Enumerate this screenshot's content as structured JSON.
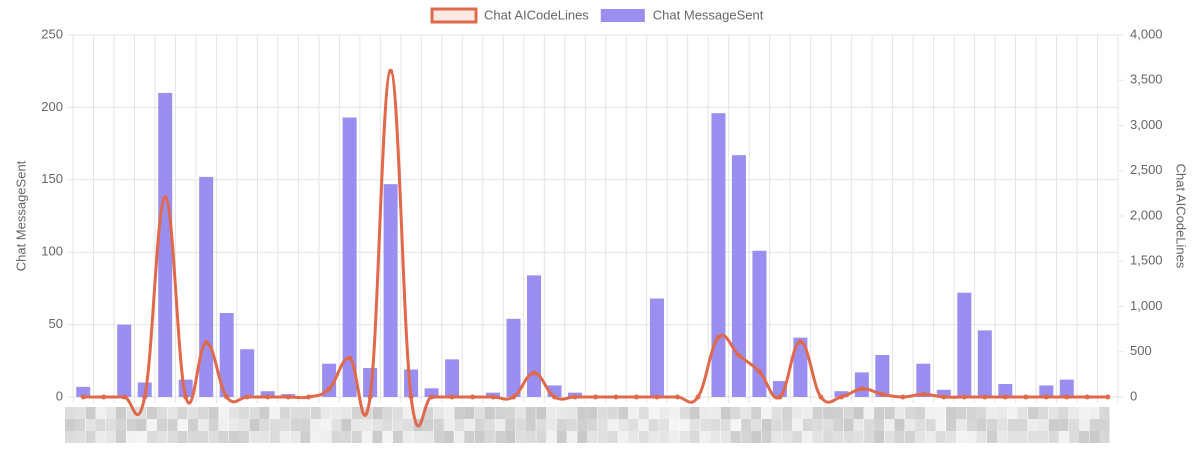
{
  "chart_data": {
    "type": "bar",
    "categories": [
      null,
      null,
      null,
      null,
      null,
      null,
      null,
      null,
      null,
      null,
      null,
      null,
      null,
      null,
      null,
      null,
      null,
      null,
      null,
      null,
      null,
      null,
      null,
      null,
      null,
      null,
      null,
      null,
      null,
      null,
      null,
      null,
      null,
      null,
      null,
      null,
      null,
      null,
      null,
      null,
      null,
      null,
      null,
      null,
      null,
      null,
      null,
      null,
      null,
      null,
      null
    ],
    "series": [
      {
        "name": "Chat AICodeLines",
        "type": "line",
        "axis": "y2",
        "color": "#e0694b",
        "values": [
          0,
          0,
          0,
          0,
          2200,
          0,
          600,
          0,
          0,
          0,
          0,
          0,
          90,
          430,
          0,
          3600,
          0,
          0,
          0,
          0,
          0,
          0,
          265,
          0,
          0,
          0,
          0,
          0,
          0,
          0,
          0,
          660,
          460,
          280,
          0,
          610,
          0,
          0,
          90,
          30,
          0,
          30,
          0,
          0,
          0,
          0,
          0,
          0,
          0,
          0,
          0
        ]
      },
      {
        "name": "Chat MessageSent",
        "type": "bar",
        "axis": "y",
        "color": "#9a8ef0",
        "values": [
          7,
          0,
          50,
          10,
          210,
          12,
          152,
          58,
          33,
          4,
          2,
          0,
          23,
          193,
          20,
          147,
          19,
          6,
          26,
          0,
          3,
          54,
          84,
          8,
          3,
          0,
          0,
          0,
          68,
          0,
          0,
          196,
          167,
          101,
          11,
          41,
          0,
          4,
          17,
          29,
          0,
          23,
          5,
          72,
          46,
          9,
          0,
          8,
          12,
          0,
          0
        ]
      }
    ],
    "ylabel": "Chat MessageSent",
    "y2label": "Chat AICodeLines",
    "ylim": [
      0,
      250
    ],
    "yticks": [
      0,
      50,
      100,
      150,
      200,
      250
    ],
    "y2lim": [
      0,
      4000
    ],
    "y2ticks": [
      0,
      500,
      {
        "value": 1000,
        "label": "1,000"
      },
      {
        "value": 1500,
        "label": "1,500"
      },
      {
        "value": 2000,
        "label": "2,000"
      },
      {
        "value": 2500,
        "label": "2,500"
      },
      {
        "value": 3000,
        "label": "3,000"
      },
      {
        "value": 3500,
        "label": "3,500"
      },
      {
        "value": 4000,
        "label": "4,000"
      }
    ],
    "grid": true,
    "legend": "top"
  }
}
